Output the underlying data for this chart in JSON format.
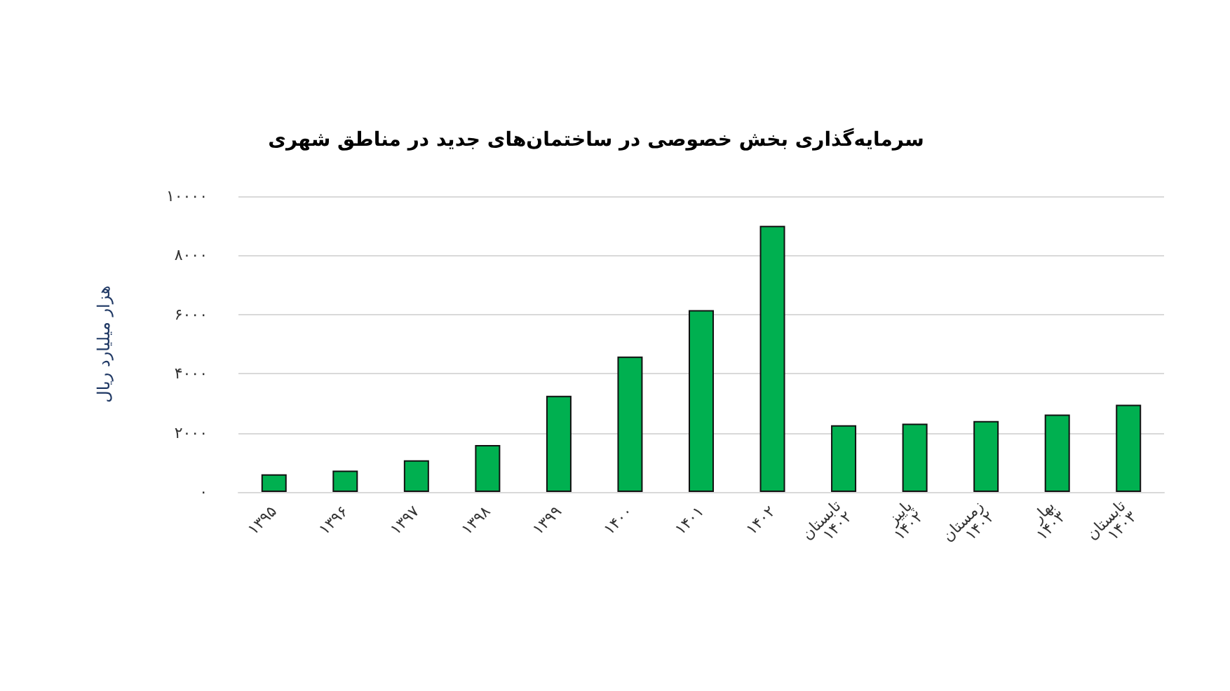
{
  "chart_data": {
    "type": "bar",
    "title": "سرمایه‌گذاری بخش خصوصی در ساختمان‌های جدید در مناطق شهری",
    "ylabel": "هزار میلیارد ریال",
    "categories": [
      "۱۳۹۵",
      "۱۳۹۶",
      "۱۳۹۷",
      "۱۳۹۸",
      "۱۳۹۹",
      "۱۴۰۰",
      "۱۴۰۱",
      "۱۴۰۲",
      "تابستان ۱۴۰۲",
      "پاییز ۱۴۰۲",
      "زمستان ۱۴۰۲",
      "بهار ۱۴۰۳",
      "تابستان ۱۴۰۳"
    ],
    "values": [
      600,
      720,
      1070,
      1590,
      3250,
      4580,
      6150,
      9000,
      2260,
      2310,
      2400,
      2620,
      2950
    ],
    "color": "#00b050",
    "ylim": [
      0,
      10000
    ],
    "yticks": [
      {
        "value": 0,
        "label": "۰"
      },
      {
        "value": 2000,
        "label": "۲۰۰۰"
      },
      {
        "value": 4000,
        "label": "۴۰۰۰"
      },
      {
        "value": 6000,
        "label": "۶۰۰۰"
      },
      {
        "value": 8000,
        "label": "۸۰۰۰"
      },
      {
        "value": 10000,
        "label": "۱۰۰۰۰"
      }
    ],
    "grid": "y"
  }
}
